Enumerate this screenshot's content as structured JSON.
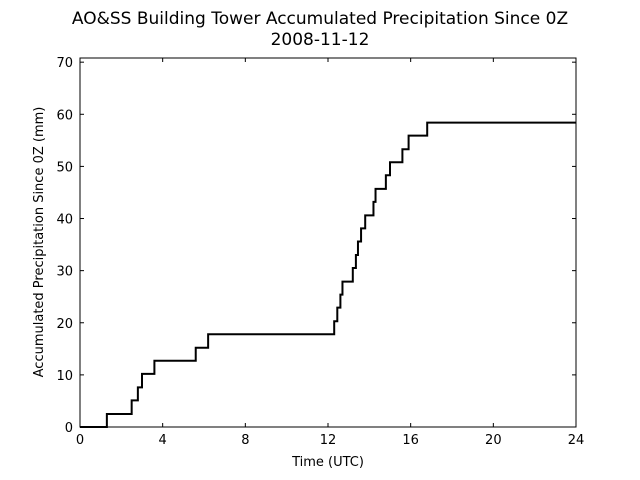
{
  "chart_data": {
    "type": "line",
    "title": "AO&SS Building Tower Accumulated Precipitation Since 0Z",
    "subtitle": "2008-11-12",
    "xlabel": "Time (UTC)",
    "ylabel": "Accumulated Precipitation Since 0Z (mm)",
    "xlim": [
      0,
      24
    ],
    "ylim": [
      0,
      70.8
    ],
    "xticks": [
      0,
      4,
      8,
      12,
      16,
      20,
      24
    ],
    "yticks": [
      0,
      10,
      20,
      30,
      40,
      50,
      60,
      70
    ],
    "grid": false,
    "step": true,
    "series": [
      {
        "x": [
          0,
          1.3,
          2.5,
          2.8,
          3.0,
          3.6,
          5.6,
          6.2,
          12.3,
          12.45,
          12.6,
          12.7,
          13.2,
          13.35,
          13.45,
          13.6,
          13.8,
          14.2,
          14.3,
          14.8,
          15.0,
          15.6,
          15.9,
          16.8,
          24
        ],
        "y": [
          0,
          2.5,
          5.1,
          7.6,
          10.2,
          12.7,
          15.2,
          17.8,
          20.3,
          22.9,
          25.4,
          27.9,
          30.5,
          33.0,
          35.6,
          38.1,
          40.6,
          43.2,
          45.7,
          48.3,
          50.8,
          53.3,
          55.9,
          58.4,
          58.4
        ]
      }
    ]
  }
}
